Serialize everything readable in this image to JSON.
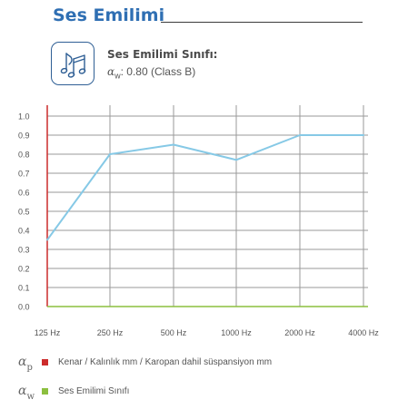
{
  "header": {
    "title": "Ses Emilimi"
  },
  "info": {
    "title": "Ses Emilimi Sınıfı:",
    "symbol": "α",
    "symbol_sub": "w",
    "value": ": 0.80 (Class B)",
    "icon": "music-notes-icon"
  },
  "colors": {
    "accent": "#2f6fb3",
    "series": "#86c9e6",
    "grid": "#9a9a9a",
    "left_axis": "#cc2b2b",
    "base_axis": "#8cbf3f"
  },
  "chart_data": {
    "type": "line",
    "categories": [
      "125 Hz",
      "250 Hz",
      "500 Hz",
      "1000 Hz",
      "2000 Hz",
      "4000 Hz"
    ],
    "series": [
      {
        "values": [
          0.35,
          0.8,
          0.85,
          0.77,
          0.9,
          0.9
        ]
      }
    ],
    "y_ticks": [
      "0.0",
      "0.1",
      "0.2",
      "0.3",
      "0.4",
      "0.5",
      "0.6",
      "0.7",
      "0.8",
      "0.9",
      "1.0"
    ],
    "ylim": [
      0,
      1.0
    ],
    "grid": true
  },
  "legend": [
    {
      "symbol": "α",
      "sub": "p",
      "color": "#cc2b2b",
      "text": "Kenar / Kalınlık mm / Karopan dahil süspansiyon mm"
    },
    {
      "symbol": "α",
      "sub": "w",
      "color": "#8cbf3f",
      "text": "Ses Emilimi Sınıfı"
    }
  ]
}
